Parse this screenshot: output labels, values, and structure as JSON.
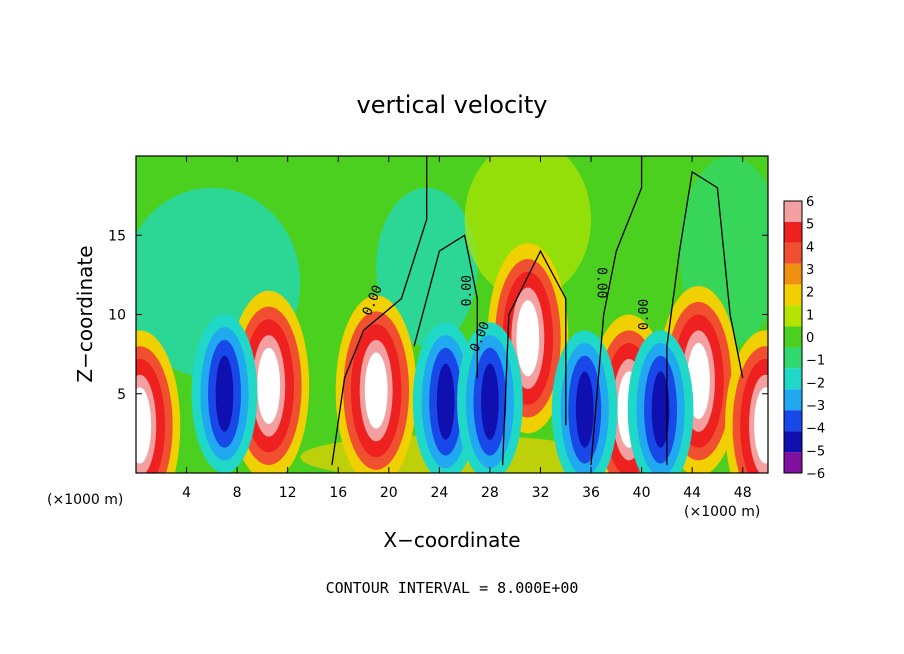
{
  "chart_data": {
    "type": "heatmap",
    "title": "vertical velocity",
    "xlabel": "X−coordinate",
    "ylabel": "Z−coordinate",
    "x_unit_left": "(×1000 m)",
    "x_unit_right": "(×1000 m)",
    "xlim": [
      0,
      50
    ],
    "ylim": [
      0,
      20
    ],
    "x_ticks": [
      4,
      8,
      12,
      16,
      20,
      24,
      28,
      32,
      36,
      40,
      44,
      48
    ],
    "y_ticks": [
      5,
      10,
      15
    ],
    "colorbar_levels": [
      6,
      5,
      4,
      3,
      2,
      1,
      0,
      -1,
      -2,
      -3,
      -4,
      -5,
      -6
    ],
    "colorbar_labels": [
      "6",
      "5",
      "4",
      "3",
      "2",
      "1",
      "0",
      "−1",
      "−2",
      "−3",
      "−4",
      "−5",
      "−6"
    ],
    "colorbar_colors": [
      "#f4a0a0",
      "#ee2020",
      "#f05030",
      "#f09010",
      "#f0d000",
      "#b4e400",
      "#4cd020",
      "#30d870",
      "#20d8c8",
      "#20a8f0",
      "#1848e8",
      "#1010b0",
      "#8010a0"
    ],
    "contour_labels": [
      "0.00",
      "0.00",
      "0.00",
      "0.00",
      "0.00"
    ],
    "footer": "CONTOUR INTERVAL = 8.000E+00",
    "features": [
      {
        "kind": "updraft",
        "x": 19.0,
        "z": 5.2,
        "peak": 6
      },
      {
        "kind": "updraft",
        "x": 31.0,
        "z": 8.5,
        "peak": 6
      },
      {
        "kind": "updraft",
        "x": 44.5,
        "z": 5.8,
        "peak": 6
      },
      {
        "kind": "updraft",
        "x": 0.3,
        "z": 3.0,
        "peak": 6
      },
      {
        "kind": "updraft",
        "x": 49.8,
        "z": 3.0,
        "peak": 6
      },
      {
        "kind": "updraft",
        "x": 10.5,
        "z": 5.5,
        "peak": 6
      },
      {
        "kind": "updraft",
        "x": 39.0,
        "z": 4.0,
        "peak": 6
      },
      {
        "kind": "downdraft",
        "x": 7.0,
        "z": 5.0,
        "peak": -5
      },
      {
        "kind": "downdraft",
        "x": 24.5,
        "z": 4.5,
        "peak": -5
      },
      {
        "kind": "downdraft",
        "x": 28.0,
        "z": 4.5,
        "peak": -5
      },
      {
        "kind": "downdraft",
        "x": 35.5,
        "z": 4.0,
        "peak": -5
      },
      {
        "kind": "downdraft",
        "x": 41.5,
        "z": 4.0,
        "peak": -4
      }
    ]
  }
}
